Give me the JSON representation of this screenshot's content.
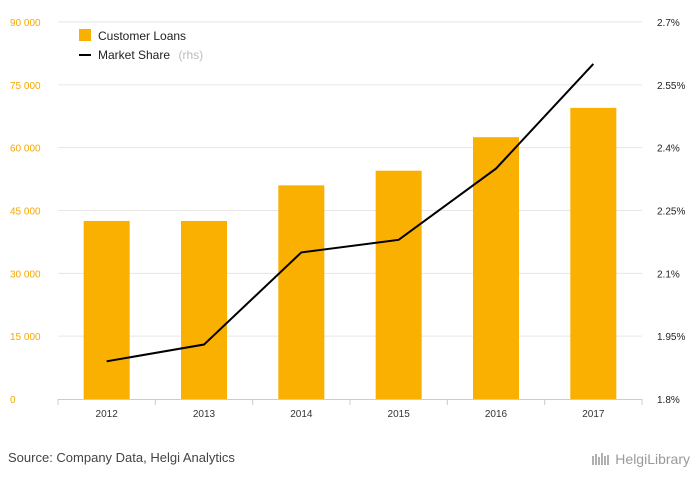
{
  "chart_data": {
    "type": "bar",
    "categories": [
      "2012",
      "2013",
      "2014",
      "2015",
      "2016",
      "2017"
    ],
    "series": [
      {
        "name": "Customer Loans",
        "type": "bar",
        "axis": "left",
        "color": "#f9b000",
        "values": [
          42500,
          42500,
          51000,
          54500,
          62500,
          69500
        ]
      },
      {
        "name": "Market Share",
        "type": "line",
        "axis": "right",
        "color": "#000000",
        "values": [
          1.89,
          1.93,
          2.15,
          2.18,
          2.35,
          2.6
        ]
      }
    ],
    "left_axis": {
      "ylim": [
        0,
        90000
      ],
      "ticks": [
        0,
        15000,
        30000,
        45000,
        60000,
        75000,
        90000
      ],
      "tick_labels": [
        "0",
        "15 000",
        "30 000",
        "45 000",
        "60 000",
        "75 000",
        "90 000"
      ],
      "color": "#f5a800"
    },
    "right_axis": {
      "ylim": [
        1.8,
        2.7
      ],
      "ticks": [
        1.8,
        1.95,
        2.1,
        2.25,
        2.4,
        2.55,
        2.7
      ],
      "tick_labels": [
        "1.8%",
        "1.95%",
        "2.1%",
        "2.25%",
        "2.4%",
        "2.55%",
        "2.7%"
      ]
    },
    "legend": {
      "placement": "top-left",
      "items": [
        {
          "label": "Customer Loans",
          "note": ""
        },
        {
          "label": "Market Share",
          "note": "(rhs)"
        }
      ]
    },
    "grid": true
  },
  "footer": {
    "source": "Source: Company Data, Helgi Analytics",
    "brand": "HelgiLibrary"
  }
}
